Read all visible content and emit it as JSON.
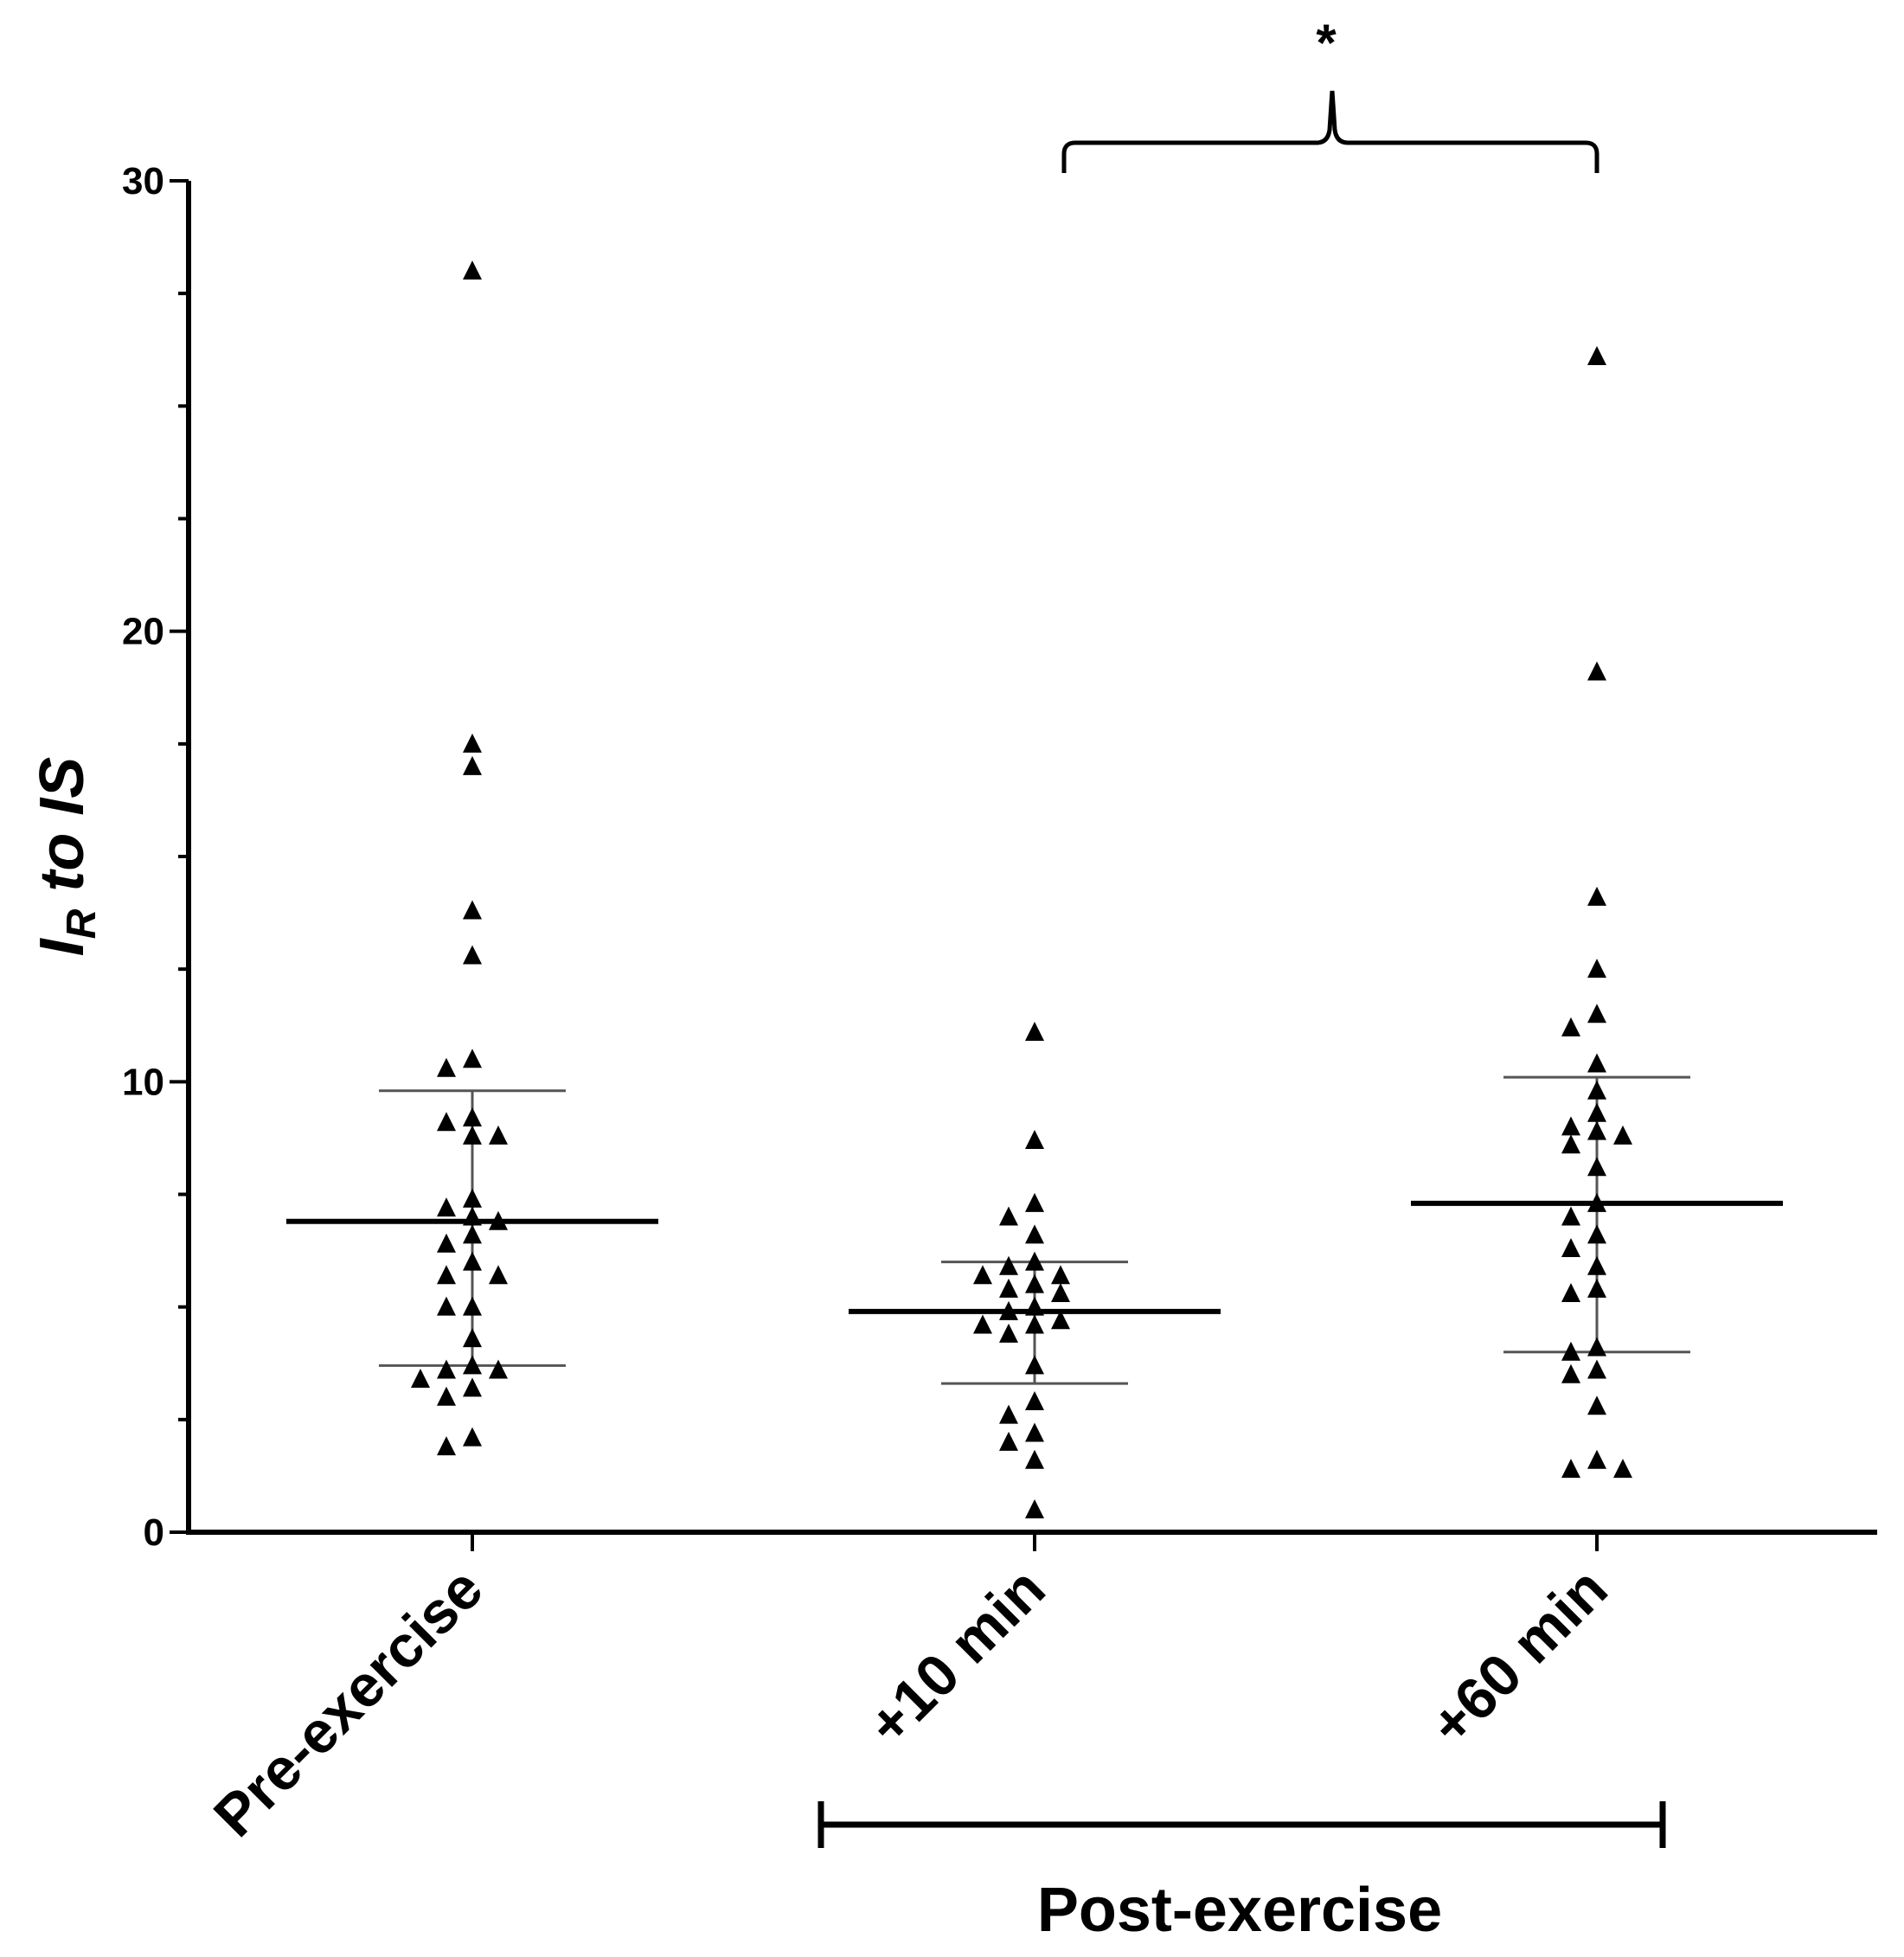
{
  "chart_data": {
    "type": "scatter",
    "ylabel_main": "I",
    "ylabel_sub": "R",
    "ylabel_rest": " to  IS",
    "ylim": [
      0,
      30
    ],
    "y_ticks": [
      0,
      10,
      20,
      30
    ],
    "y_tick_labels": [
      "0",
      "10",
      "20",
      "30"
    ],
    "minor_tick_step": 2.5,
    "categories": [
      "Pre-exercise",
      "+10 min",
      "+60 min"
    ],
    "group_label": "Post-exercise",
    "significance": {
      "label": "*",
      "between": [
        "+10 min",
        "+60 min"
      ]
    },
    "marker": "triangle",
    "color": "#000000",
    "series": [
      {
        "name": "Pre-exercise",
        "mean": 6.9,
        "sd_upper": 9.8,
        "sd_lower": 3.7,
        "points": [
          28.0,
          17.5,
          17.0,
          13.8,
          12.8,
          10.5,
          10.3,
          9.2,
          9.1,
          8.8,
          8.8,
          7.4,
          7.2,
          7.0,
          6.9,
          6.6,
          6.4,
          6.0,
          5.7,
          5.7,
          5.0,
          5.0,
          4.3,
          3.7,
          3.6,
          3.6,
          3.4,
          3.2,
          3.0,
          2.1,
          1.9
        ]
      },
      {
        "name": "+10 min",
        "mean": 4.9,
        "sd_upper": 6.0,
        "sd_lower": 3.3,
        "points": [
          11.1,
          8.7,
          7.3,
          7.0,
          6.6,
          6.0,
          5.9,
          5.7,
          5.7,
          5.5,
          5.4,
          5.3,
          5.0,
          4.9,
          4.7,
          4.6,
          4.6,
          4.4,
          3.7,
          2.9,
          2.6,
          2.2,
          2.0,
          1.6,
          0.5
        ]
      },
      {
        "name": "+60 min",
        "mean": 7.3,
        "sd_upper": 10.1,
        "sd_lower": 4.0,
        "points": [
          26.1,
          19.1,
          14.1,
          12.5,
          11.5,
          11.2,
          10.4,
          9.8,
          9.3,
          9.0,
          8.9,
          8.8,
          8.6,
          8.1,
          7.3,
          7.0,
          6.6,
          6.3,
          5.9,
          5.4,
          5.3,
          4.1,
          4.0,
          3.6,
          3.5,
          2.8,
          1.6,
          1.4,
          1.4
        ]
      }
    ]
  }
}
